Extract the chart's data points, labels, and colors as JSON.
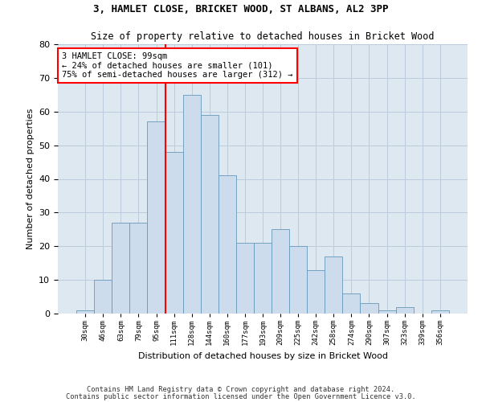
{
  "title1": "3, HAMLET CLOSE, BRICKET WOOD, ST ALBANS, AL2 3PP",
  "title2": "Size of property relative to detached houses in Bricket Wood",
  "xlabel": "Distribution of detached houses by size in Bricket Wood",
  "ylabel": "Number of detached properties",
  "categories": [
    "30sqm",
    "46sqm",
    "63sqm",
    "79sqm",
    "95sqm",
    "111sqm",
    "128sqm",
    "144sqm",
    "160sqm",
    "177sqm",
    "193sqm",
    "209sqm",
    "225sqm",
    "242sqm",
    "258sqm",
    "274sqm",
    "290sqm",
    "307sqm",
    "323sqm",
    "339sqm",
    "356sqm"
  ],
  "values": [
    1,
    10,
    27,
    27,
    57,
    48,
    65,
    59,
    41,
    21,
    21,
    25,
    20,
    13,
    17,
    6,
    3,
    1,
    2,
    0,
    1
  ],
  "bar_color": "#ccdcec",
  "bar_edge_color": "#6699bb",
  "grid_color": "#bbccdd",
  "vline_index": 4.5,
  "vline_color": "red",
  "annotation_text": "3 HAMLET CLOSE: 99sqm\n← 24% of detached houses are smaller (101)\n75% of semi-detached houses are larger (312) →",
  "annotation_box_color": "white",
  "annotation_box_edge": "red",
  "ylim": [
    0,
    80
  ],
  "yticks": [
    0,
    10,
    20,
    30,
    40,
    50,
    60,
    70,
    80
  ],
  "footnote1": "Contains HM Land Registry data © Crown copyright and database right 2024.",
  "footnote2": "Contains public sector information licensed under the Open Government Licence v3.0.",
  "bg_color": "#dde8f0",
  "fig_width": 6.0,
  "fig_height": 5.0,
  "dpi": 100
}
